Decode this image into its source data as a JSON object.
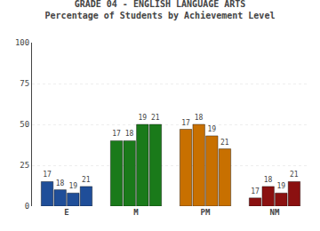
{
  "chart_data": {
    "type": "bar",
    "title": "GRADE 04 - ENGLISH LANGUAGE ARTS",
    "subtitle": "Percentage of Students by Achievement Level",
    "categories": [
      "E",
      "M",
      "PM",
      "NM"
    ],
    "series": [
      {
        "name": "17",
        "values": [
          15,
          40,
          47,
          5
        ],
        "colors": [
          "#1f4e99",
          "#1a7a1a",
          "#c87000",
          "#8b1010"
        ]
      },
      {
        "name": "18",
        "values": [
          10,
          40,
          50,
          12
        ],
        "colors": [
          "#1f4e99",
          "#1a7a1a",
          "#c87000",
          "#8b1010"
        ]
      },
      {
        "name": "19",
        "values": [
          8,
          50,
          43,
          8
        ],
        "colors": [
          "#1f4e99",
          "#1a7a1a",
          "#c87000",
          "#8b1010"
        ]
      },
      {
        "name": "21",
        "values": [
          12,
          50,
          35,
          15
        ],
        "colors": [
          "#1f4e99",
          "#1a7a1a",
          "#c87000",
          "#8b1010"
        ]
      }
    ],
    "ylim": [
      0,
      100
    ],
    "yticks": [
      0,
      25,
      50,
      75,
      100
    ],
    "grid": true
  }
}
